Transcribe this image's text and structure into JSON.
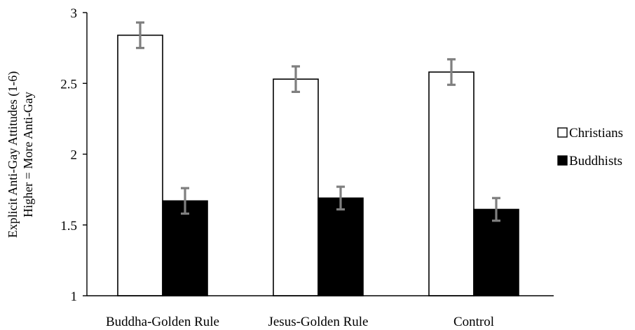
{
  "chart_data": {
    "type": "bar",
    "categories": [
      "Buddha-Golden Rule",
      "Jesus-Golden Rule",
      "Control"
    ],
    "series": [
      {
        "name": "Christians",
        "values": [
          2.84,
          2.53,
          2.58
        ],
        "error": [
          0.09,
          0.09,
          0.09
        ],
        "color": "#ffffff",
        "stroke": "#000000"
      },
      {
        "name": "Buddhists",
        "values": [
          1.67,
          1.69,
          1.61
        ],
        "error": [
          0.09,
          0.08,
          0.08
        ],
        "color": "#000000",
        "stroke": "#000000"
      }
    ],
    "ylabel_line1": "Explicit Anti-Gay Attitudes (1-6)",
    "ylabel_line2": "Higher = More Anti-Gay",
    "ylim": [
      1,
      3
    ],
    "yticks": [
      "1",
      "1.5",
      "2",
      "2.5",
      "3"
    ],
    "grid": false,
    "legend_position": "right",
    "error_bar_color": "#7f7f7f"
  }
}
